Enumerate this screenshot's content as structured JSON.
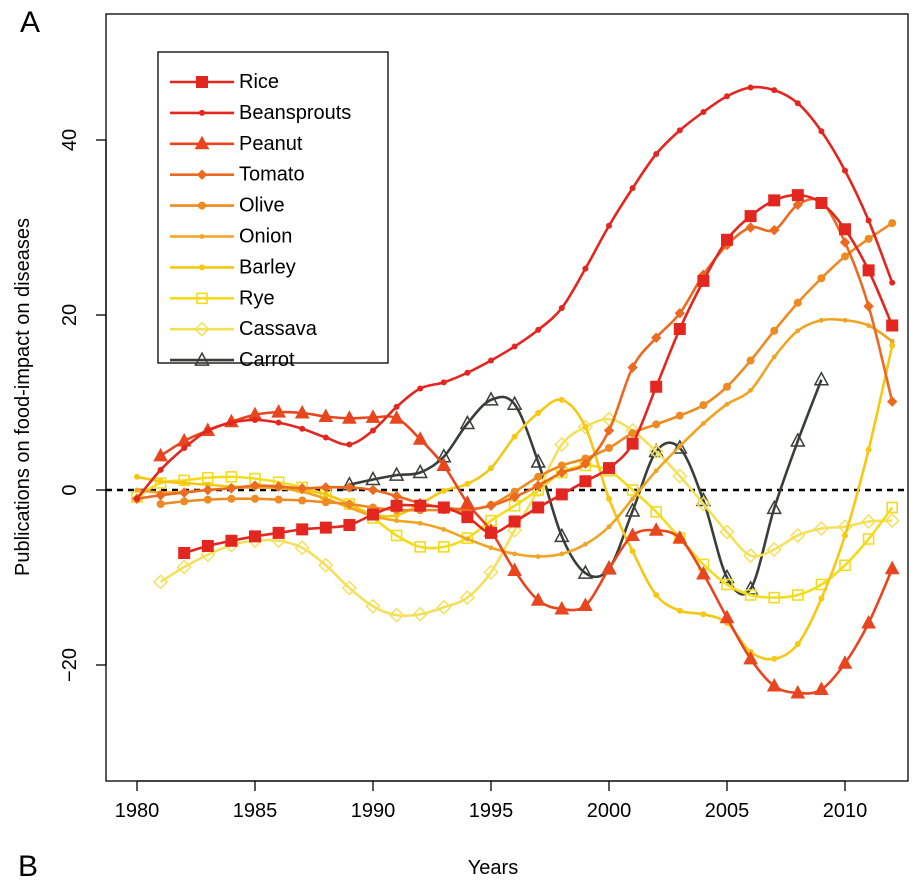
{
  "panel_labels": {
    "top": "A",
    "bottom": "B"
  },
  "chart_data": {
    "type": "line",
    "xlabel": "Years",
    "ylabel": "Publications on food-impact on diseases",
    "xlim": [
      1979.0,
      2012.5
    ],
    "ylim": [
      -33,
      54
    ],
    "xticks": [
      1980,
      1985,
      1990,
      1995,
      2000,
      2005,
      2010
    ],
    "yticks": [
      -20,
      0,
      20,
      40
    ],
    "ytick_labels": [
      "−20",
      "0",
      "20",
      "40"
    ],
    "reference_line": {
      "y": 0,
      "style": "dashed",
      "color": "#000000"
    },
    "legend_position": "top-left",
    "series": [
      {
        "name": "Rice",
        "color": "#e3261f",
        "marker": "square-filled",
        "x": [
          1982,
          1983,
          1984,
          1985,
          1986,
          1987,
          1988,
          1989,
          1990,
          1991,
          1992,
          1993,
          1994,
          1995,
          1996,
          1997,
          1998,
          1999,
          2000,
          2001,
          2002,
          2003,
          2004,
          2005,
          2006,
          2007,
          2008,
          2009,
          2010,
          2011,
          2012
        ],
        "y": [
          -7.2,
          -6.4,
          -5.8,
          -5.3,
          -4.9,
          -4.5,
          -4.3,
          -4.0,
          -2.8,
          -1.8,
          -1.8,
          -2.0,
          -3.1,
          -4.9,
          -3.6,
          -2.0,
          -0.5,
          1.0,
          2.5,
          5.3,
          11.8,
          18.4,
          23.9,
          28.6,
          31.3,
          33.1,
          33.7,
          32.8,
          29.8,
          25.1,
          18.8
        ]
      },
      {
        "name": "Beansprouts",
        "color": "#e3261f",
        "marker": "dot-filled",
        "x": [
          1980,
          1981,
          1982,
          1983,
          1984,
          1985,
          1986,
          1987,
          1988,
          1989,
          1990,
          1991,
          1992,
          1993,
          1994,
          1995,
          1996,
          1997,
          1998,
          1999,
          2000,
          2001,
          2002,
          2003,
          2004,
          2005,
          2006,
          2007,
          2008,
          2009,
          2010,
          2011,
          2012
        ],
        "y": [
          -1.0,
          2.3,
          4.8,
          6.8,
          7.7,
          8.0,
          7.7,
          7.0,
          6.0,
          5.2,
          6.8,
          9.5,
          11.6,
          12.3,
          13.4,
          14.8,
          16.4,
          18.3,
          20.8,
          25.3,
          30.2,
          34.5,
          38.4,
          41.1,
          43.2,
          45.0,
          46.0,
          45.7,
          44.2,
          41.0,
          36.5,
          30.8,
          23.7
        ]
      },
      {
        "name": "Peanut",
        "color": "#e8461e",
        "marker": "triangle-filled",
        "x": [
          1981,
          1982,
          1983,
          1984,
          1985,
          1986,
          1987,
          1988,
          1989,
          1990,
          1991,
          1992,
          1993,
          1994,
          1995,
          1996,
          1997,
          1998,
          1999,
          2000,
          2001,
          2002,
          2003,
          2004,
          2005,
          2006,
          2007,
          2008,
          2009,
          2010,
          2011,
          2012
        ],
        "y": [
          3.9,
          5.6,
          6.8,
          7.8,
          8.6,
          8.9,
          8.8,
          8.4,
          8.2,
          8.3,
          8.2,
          5.8,
          2.8,
          -1.5,
          -4.7,
          -9.2,
          -12.6,
          -13.6,
          -13.2,
          -9.0,
          -5.2,
          -4.6,
          -5.5,
          -9.6,
          -14.6,
          -19.3,
          -22.4,
          -23.2,
          -22.8,
          -19.8,
          -15.2,
          -9.0
        ]
      },
      {
        "name": "Tomato",
        "color": "#ea6a22",
        "marker": "diamond-filled",
        "x": [
          1980,
          1981,
          1982,
          1983,
          1984,
          1985,
          1986,
          1987,
          1988,
          1989,
          1990,
          1991,
          1992,
          1993,
          1994,
          1995,
          1996,
          1997,
          1998,
          1999,
          2000,
          2001,
          2002,
          2003,
          2004,
          2005,
          2006,
          2007,
          2008,
          2009,
          2010,
          2011,
          2012
        ],
        "y": [
          -1.0,
          -0.6,
          -0.3,
          0.0,
          0.2,
          0.5,
          0.4,
          0.2,
          0.3,
          0.3,
          0.0,
          -0.7,
          -1.5,
          -2.0,
          -2.2,
          -1.8,
          -0.8,
          0.5,
          2.0,
          3.0,
          6.8,
          14.0,
          17.4,
          20.2,
          24.6,
          28.0,
          30.0,
          29.7,
          32.6,
          32.9,
          28.3,
          21.0,
          10.1
        ]
      },
      {
        "name": "Olive",
        "color": "#ee8a22",
        "marker": "dot-filled-large",
        "x": [
          1981,
          1982,
          1983,
          1984,
          1985,
          1986,
          1987,
          1988,
          1989,
          1990,
          1991,
          1992,
          1993,
          1994,
          1995,
          1996,
          1997,
          1998,
          1999,
          2000,
          2001,
          2002,
          2003,
          2004,
          2005,
          2006,
          2007,
          2008,
          2009,
          2010,
          2011,
          2012
        ],
        "y": [
          -1.6,
          -1.3,
          -1.1,
          -1.0,
          -1.0,
          -1.1,
          -1.2,
          -1.4,
          -1.6,
          -2.0,
          -2.3,
          -2.3,
          -2.3,
          -2.3,
          -1.7,
          -0.2,
          1.5,
          2.8,
          3.6,
          4.8,
          6.5,
          7.5,
          8.5,
          9.7,
          11.8,
          14.8,
          18.2,
          21.4,
          24.2,
          26.7,
          28.7,
          30.5
        ]
      },
      {
        "name": "Onion",
        "color": "#f0a424",
        "marker": "dot-filled-small",
        "x": [
          1980,
          1981,
          1982,
          1983,
          1984,
          1985,
          1986,
          1987,
          1988,
          1989,
          1990,
          1991,
          1992,
          1993,
          1994,
          1995,
          1996,
          1997,
          1998,
          1999,
          2000,
          2001,
          2002,
          2003,
          2004,
          2005,
          2006,
          2007,
          2008,
          2009,
          2010,
          2011,
          2012
        ],
        "y": [
          0.0,
          -0.3,
          -0.2,
          0.0,
          0.2,
          0.3,
          0.2,
          -0.2,
          -1.0,
          -2.0,
          -3.0,
          -3.5,
          -3.8,
          -4.5,
          -5.6,
          -6.6,
          -7.3,
          -7.6,
          -7.3,
          -6.2,
          -4.2,
          -1.0,
          2.2,
          5.0,
          7.6,
          9.8,
          11.4,
          15.2,
          18.2,
          19.4,
          19.4,
          18.8,
          17.0
        ]
      },
      {
        "name": "Barley",
        "color": "#f6c814",
        "marker": "dot-filled",
        "x": [
          1980,
          1981,
          1982,
          1983,
          1984,
          1985,
          1986,
          1987,
          1988,
          1989,
          1990,
          1991,
          1992,
          1993,
          1994,
          1995,
          1996,
          1997,
          1998,
          1999,
          2000,
          2001,
          2002,
          2003,
          2004,
          2005,
          2006,
          2007,
          2008,
          2009,
          2010,
          2011,
          2012
        ],
        "y": [
          1.5,
          1.0,
          0.8,
          0.6,
          0.4,
          0.3,
          0.2,
          0.0,
          -0.5,
          -1.6,
          -2.8,
          -2.9,
          -1.6,
          -0.1,
          0.7,
          2.5,
          6.1,
          8.8,
          10.3,
          7.2,
          -1.0,
          -7.0,
          -12.0,
          -13.8,
          -14.2,
          -15.2,
          -18.5,
          -19.3,
          -17.6,
          -12.4,
          -5.2,
          4.6,
          16.5
        ]
      },
      {
        "name": "Rye",
        "color": "#f2dc1c",
        "marker": "square-open",
        "x": [
          1980,
          1981,
          1982,
          1983,
          1984,
          1985,
          1986,
          1987,
          1988,
          1989,
          1990,
          1991,
          1992,
          1993,
          1994,
          1995,
          1996,
          1997,
          1998,
          1999,
          2000,
          2001,
          2002,
          2003,
          2004,
          2005,
          2006,
          2007,
          2008,
          2009,
          2010,
          2011,
          2012
        ],
        "y": [
          -0.8,
          0.8,
          1.1,
          1.4,
          1.5,
          1.3,
          0.9,
          0.3,
          -0.5,
          -1.6,
          -3.2,
          -5.2,
          -6.5,
          -6.5,
          -5.5,
          -3.5,
          -1.8,
          0.0,
          2.0,
          2.8,
          2.2,
          0.0,
          -2.5,
          -5.5,
          -8.5,
          -10.8,
          -12.0,
          -12.3,
          -12.0,
          -10.8,
          -8.6,
          -5.6,
          -2.0
        ]
      },
      {
        "name": "Cassava",
        "color": "#f4e05a",
        "marker": "diamond-open",
        "x": [
          1981,
          1982,
          1983,
          1984,
          1985,
          1986,
          1987,
          1988,
          1989,
          1990,
          1991,
          1992,
          1993,
          1994,
          1995,
          1996,
          1997,
          1998,
          1999,
          2000,
          2001,
          2002,
          2003,
          2004,
          2005,
          2006,
          2007,
          2008,
          2009,
          2010,
          2011,
          2012
        ],
        "y": [
          -10.5,
          -8.8,
          -7.4,
          -6.3,
          -5.8,
          -5.8,
          -6.6,
          -8.6,
          -11.2,
          -13.3,
          -14.3,
          -14.2,
          -13.4,
          -12.3,
          -9.4,
          -4.6,
          0.0,
          5.2,
          7.2,
          8.1,
          6.8,
          4.4,
          1.6,
          -1.6,
          -4.8,
          -7.5,
          -6.8,
          -5.2,
          -4.4,
          -4.2,
          -3.6,
          -3.5
        ]
      },
      {
        "name": "Carrot",
        "color": "#393e37",
        "marker": "triangle-open",
        "x": [
          1989,
          1990,
          1991,
          1992,
          1993,
          1994,
          1995,
          1996,
          1997,
          1998,
          1999,
          2000,
          2001,
          2002,
          2003,
          2004,
          2005,
          2006,
          2007,
          2008,
          2009
        ],
        "y": [
          0.6,
          1.2,
          1.7,
          2.0,
          3.8,
          7.6,
          10.3,
          9.8,
          3.2,
          -5.3,
          -9.5,
          -9.0,
          -2.4,
          4.4,
          4.8,
          -1.2,
          -10.0,
          -11.3,
          -2.1,
          5.6,
          12.6
        ]
      }
    ]
  }
}
